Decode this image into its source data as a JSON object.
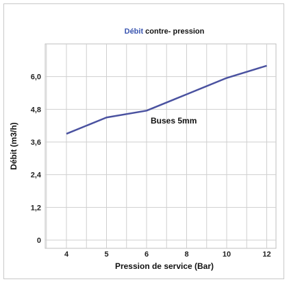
{
  "chart_data": {
    "type": "line",
    "title_highlight": "Débit",
    "title_rest": " contre- pression",
    "xlabel": "Pression de service (Bar)",
    "ylabel": "Débit (m3/h)",
    "x_tick_labels": [
      "4",
      "5",
      "6",
      "8",
      "10",
      "12"
    ],
    "y_tick_labels": [
      "0",
      "1,2",
      "2,4",
      "3,6",
      "4,8",
      "6,0"
    ],
    "y_ticks": [
      0,
      1.2,
      2.4,
      3.6,
      4.8,
      6.0
    ],
    "ylim": [
      0,
      7.2
    ],
    "x_scale": "categorical (evenly spaced ticks)",
    "grid": true,
    "series": [
      {
        "values": [
          3.9,
          4.5,
          4.75,
          5.35,
          5.95,
          6.4
        ]
      }
    ],
    "annotation": "Buses 5mm",
    "colors": {
      "line": "#4a52a0",
      "title_highlight": "#3a55b0",
      "grid": "#cfcfcf",
      "plot_background": "#ffffff"
    }
  }
}
